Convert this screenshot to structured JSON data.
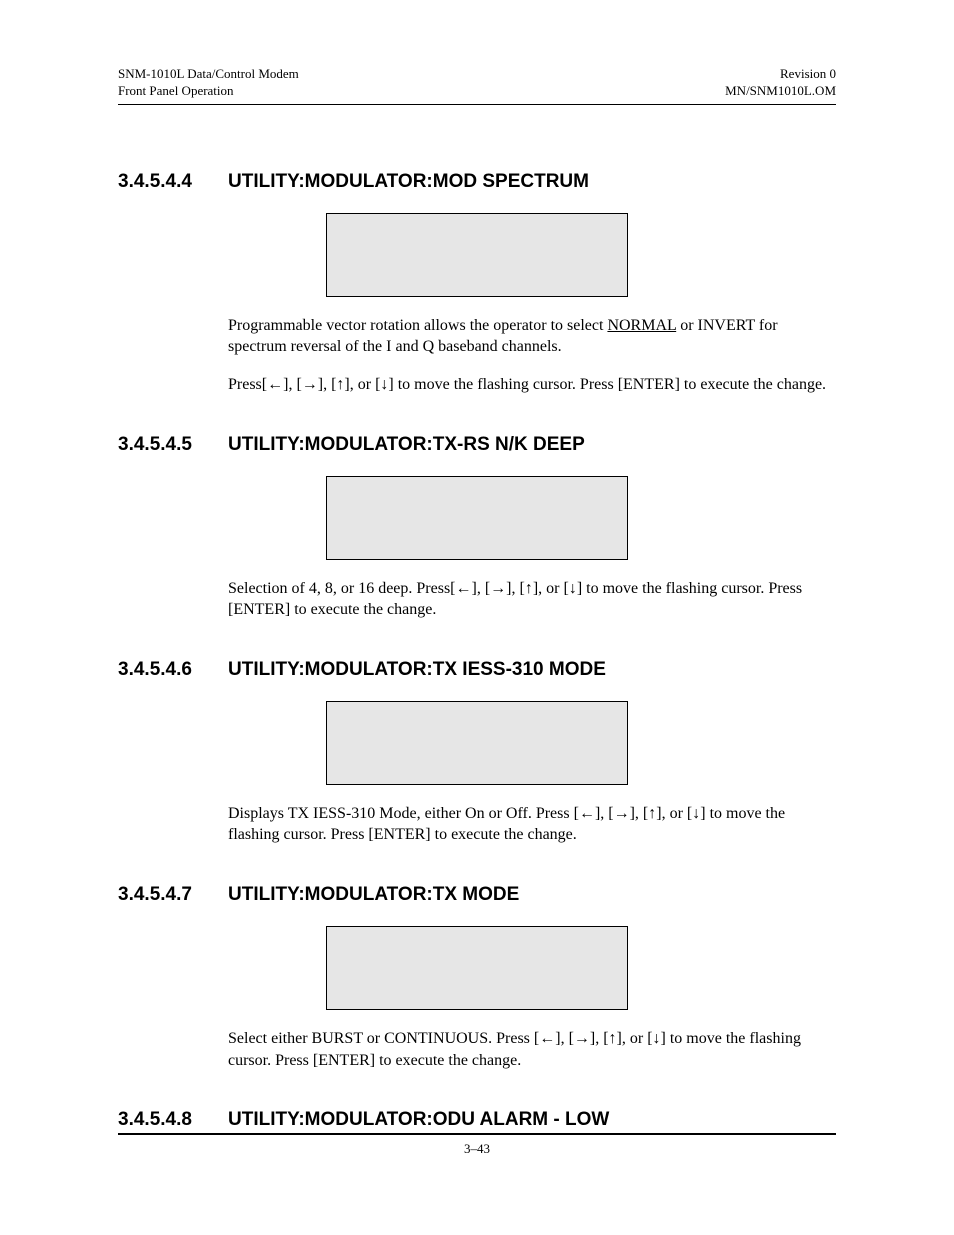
{
  "header": {
    "left1": "SNM-1010L Data/Control Modem",
    "left2": "Front Panel Operation",
    "right1": "Revision 0",
    "right2": "MN/SNM1010L.OM"
  },
  "arrows": {
    "left": "←",
    "right": "→",
    "up": "↑",
    "down": "↓"
  },
  "sections": [
    {
      "num": "3.4.5.4.4",
      "title": "UTILITY:MODULATOR:MOD SPECTRUM",
      "p1a": "Programmable vector rotation allows the operator to select ",
      "p1_underlined": "NORMAL",
      "p1b": " or INVERT for spectrum reversal of the I and Q baseband channels.",
      "p2a": "Press[",
      "p2b": "] to move the flashing cursor. Press [ENTER] to execute the change."
    },
    {
      "num": "3.4.5.4.5",
      "title": "UTILITY:MODULATOR:TX-RS N/K DEEP",
      "p1a": "Selection of 4, 8, or 16 deep. Press[",
      "p1b": "] to move the flashing cursor. Press [ENTER] to execute the change."
    },
    {
      "num": "3.4.5.4.6",
      "title": "UTILITY:MODULATOR:TX IESS-310 MODE",
      "p1a": "Displays TX IESS-310 Mode, either On or Off.  Press [",
      "p1b": "] to move the flashing cursor. Press [ENTER] to execute the change."
    },
    {
      "num": "3.4.5.4.7",
      "title": "UTILITY:MODULATOR:TX MODE",
      "p1a": "Select either BURST or CONTINUOUS. Press [",
      "p1b": "] to move the flashing cursor. Press [ENTER] to execute the change."
    },
    {
      "num": "3.4.5.4.8",
      "title": "UTILITY:MODULATOR:ODU ALARM - LOW"
    }
  ],
  "footer": {
    "pagenum": "3–43"
  }
}
